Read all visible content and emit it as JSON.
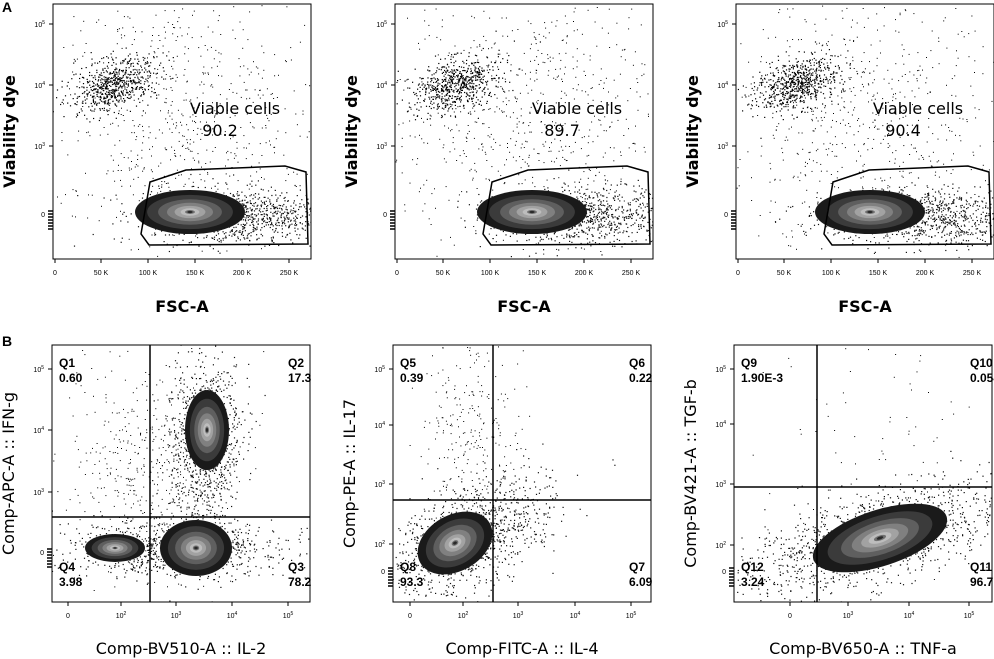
{
  "panel_labels": [
    "A",
    "B"
  ],
  "chart_data": [
    {
      "type": "scatter",
      "panel": "A",
      "xlabel": "FSC-A",
      "ylabel": "Viability dye",
      "x_ticks": [
        "0",
        "50 K",
        "100 K",
        "150 K",
        "200 K",
        "250 K"
      ],
      "y_ticks": [
        "0",
        "10^3",
        "10^4",
        "10^5"
      ],
      "y_scale": "biexponential",
      "gate": {
        "name": "Viable cells",
        "value": "90.2"
      },
      "populations": [
        {
          "x": 140000,
          "y": 0,
          "role": "dense cluster"
        },
        {
          "x": 40000,
          "y": 10000,
          "role": "dead cells"
        }
      ]
    },
    {
      "type": "scatter",
      "panel": "A",
      "xlabel": "FSC-A",
      "ylabel": "Viability dye",
      "x_ticks": [
        "0",
        "50 K",
        "100 K",
        "150 K",
        "200 K",
        "250 K"
      ],
      "y_ticks": [
        "0",
        "10^3",
        "10^4",
        "10^5"
      ],
      "y_scale": "biexponential",
      "gate": {
        "name": "Viable cells",
        "value": "89.7"
      },
      "populations": [
        {
          "x": 135000,
          "y": 0,
          "role": "dense cluster"
        },
        {
          "x": 40000,
          "y": 10000,
          "role": "dead cells"
        }
      ]
    },
    {
      "type": "scatter",
      "panel": "A",
      "xlabel": "FSC-A",
      "ylabel": "Viability dye",
      "x_ticks": [
        "0",
        "50 K",
        "100 K",
        "150 K",
        "200 K",
        "250 K"
      ],
      "y_ticks": [
        "0",
        "10^3",
        "10^4",
        "10^5"
      ],
      "y_scale": "biexponential",
      "gate": {
        "name": "Viable cells",
        "value": "90.4"
      },
      "populations": [
        {
          "x": 128000,
          "y": 0,
          "role": "dense cluster"
        },
        {
          "x": 40000,
          "y": 10000,
          "role": "dead cells"
        }
      ]
    },
    {
      "type": "scatter",
      "panel": "B",
      "xlabel": "Comp-BV510-A :: IL-2",
      "ylabel": "Comp-APC-A :: IFN-g",
      "x_ticks": [
        "0",
        "10^2",
        "10^3",
        "10^4",
        "10^5"
      ],
      "y_ticks": [
        "0",
        "10^3",
        "10^4",
        "10^5"
      ],
      "x_scale": "biexponential",
      "y_scale": "biexponential",
      "quadrants": [
        {
          "name": "Q1",
          "value": "0.60"
        },
        {
          "name": "Q2",
          "value": "17.3"
        },
        {
          "name": "Q3",
          "value": "78.2"
        },
        {
          "name": "Q4",
          "value": "3.98"
        }
      ]
    },
    {
      "type": "scatter",
      "panel": "B",
      "xlabel": "Comp-FITC-A :: IL-4",
      "ylabel": "Comp-PE-A :: IL-17",
      "x_ticks": [
        "0",
        "10^2",
        "10^3",
        "10^4",
        "10^5"
      ],
      "y_ticks": [
        "0",
        "10^2",
        "10^3",
        "10^4",
        "10^5"
      ],
      "x_scale": "biexponential",
      "y_scale": "biexponential",
      "quadrants": [
        {
          "name": "Q5",
          "value": "0.39"
        },
        {
          "name": "Q6",
          "value": "0.22"
        },
        {
          "name": "Q7",
          "value": "6.09"
        },
        {
          "name": "Q8",
          "value": "93.3"
        }
      ]
    },
    {
      "type": "scatter",
      "panel": "B",
      "xlabel": "Comp-BV650-A :: TNF-a",
      "ylabel": "Comp-BV421-A :: TGF-b",
      "x_ticks": [
        "0",
        "10^3",
        "10^4",
        "10^5"
      ],
      "y_ticks": [
        "0",
        "10^2",
        "10^3",
        "10^4",
        "10^5"
      ],
      "x_scale": "biexponential",
      "y_scale": "biexponential",
      "quadrants": [
        {
          "name": "Q9",
          "value": "1.90E-3"
        },
        {
          "name": "Q10",
          "value": "0.054"
        },
        {
          "name": "Q11",
          "value": "96.7"
        },
        {
          "name": "Q12",
          "value": "3.24"
        }
      ]
    }
  ]
}
